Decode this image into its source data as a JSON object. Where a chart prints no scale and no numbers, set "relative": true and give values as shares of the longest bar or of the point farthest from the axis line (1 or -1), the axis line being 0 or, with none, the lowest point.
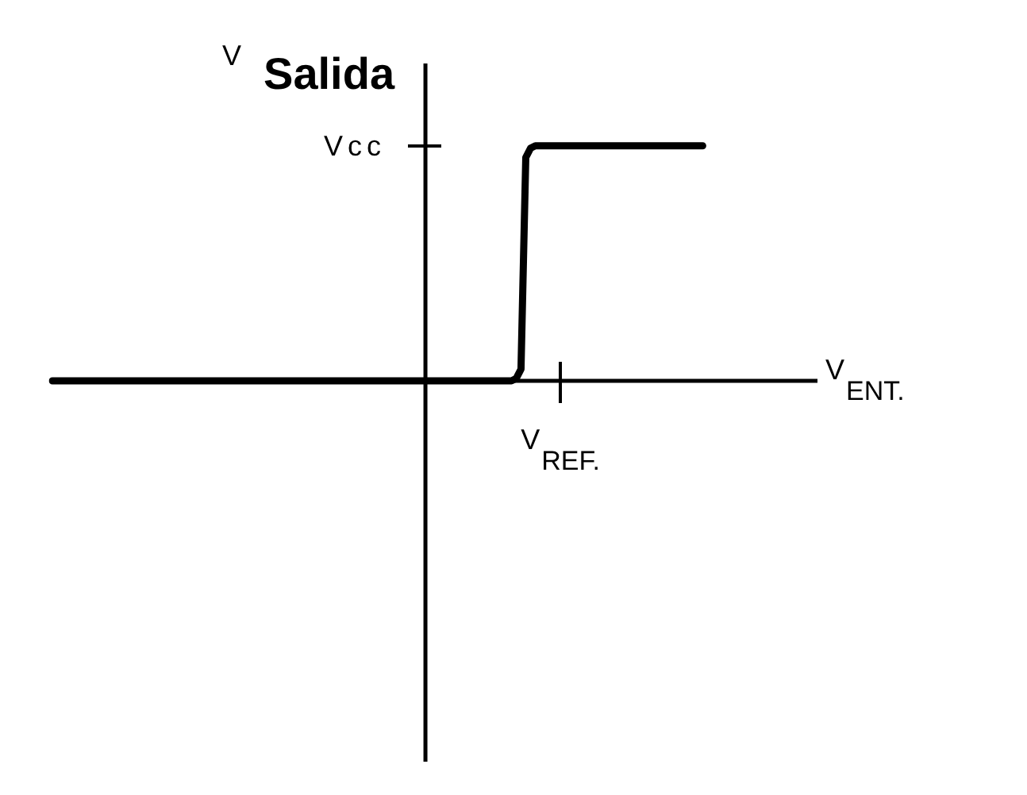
{
  "chart_data": {
    "type": "line",
    "relative": true,
    "xlabel": "V$_{ENT.}$",
    "ylabel": "V$_{Salida}$",
    "categories": [
      null,
      null,
      null,
      null,
      null,
      null,
      null,
      null,
      null,
      null,
      null,
      null,
      null,
      null,
      null,
      null,
      null,
      null,
      null,
      null,
      null,
      null,
      null,
      null,
      null,
      null,
      null,
      null,
      null,
      null,
      null,
      null,
      null,
      null,
      null,
      null,
      null,
      null,
      null,
      null,
      null,
      null,
      null,
      null,
      null,
      null,
      null,
      null,
      null,
      null,
      null,
      null,
      null,
      null,
      null,
      null,
      null,
      null,
      null,
      null,
      null,
      null,
      null,
      null,
      null,
      null,
      null,
      null,
      null,
      null,
      null,
      null,
      null,
      null,
      null,
      null,
      null,
      null,
      null,
      null,
      null,
      null,
      null,
      null,
      null,
      null,
      null,
      null,
      null,
      null,
      null,
      null,
      null,
      null,
      null,
      null,
      null,
      null,
      null,
      null,
      null,
      null,
      null,
      null,
      null,
      null,
      null,
      null,
      null,
      null,
      null,
      null,
      null,
      null,
      null,
      null,
      null,
      null,
      null,
      null,
      null,
      null,
      null,
      null,
      null,
      null,
      null,
      null,
      null,
      null,
      null,
      null,
      null,
      null,
      null,
      null,
      null,
      null,
      null,
      null,
      null,
      null,
      null,
      null,
      null,
      null,
      null,
      null,
      null,
      null,
      null,
      null,
      null,
      null,
      null,
      null,
      null,
      null,
      null,
      null,
      null
    ],
    "values": [
      0,
      0,
      0,
      0,
      0,
      0,
      0,
      0,
      0,
      0,
      0,
      0,
      0,
      0,
      0,
      0,
      0,
      0,
      0,
      0,
      0,
      0,
      0,
      0,
      0,
      0,
      0,
      0,
      0,
      0,
      0,
      0,
      0,
      0,
      0,
      0,
      0,
      0,
      0,
      0,
      0,
      0,
      0,
      0,
      0,
      0,
      0,
      0,
      0,
      0,
      0,
      0,
      0,
      0,
      0,
      0,
      0,
      0,
      0,
      0,
      0,
      0,
      0,
      0,
      0,
      0,
      0,
      0,
      0,
      0,
      0,
      0,
      0,
      0,
      0,
      0,
      0,
      0,
      0,
      0,
      0,
      0,
      0,
      0,
      0,
      0,
      0,
      0,
      0,
      0,
      0,
      0,
      0,
      0,
      0,
      0,
      0,
      0.01,
      0.05,
      0.95,
      0.99,
      1,
      1,
      1,
      1,
      1,
      1,
      1,
      1,
      1,
      1,
      1,
      1,
      1,
      1,
      1,
      1,
      1,
      1,
      1,
      1,
      1,
      1,
      1,
      1,
      1,
      1,
      1,
      1,
      1,
      1,
      1,
      1,
      1,
      1,
      1,
      1,
      null,
      null,
      null,
      null,
      null,
      null,
      null,
      null,
      null,
      null,
      null,
      null,
      null,
      null,
      null,
      null,
      null,
      null,
      null,
      null,
      null,
      null,
      null,
      null
    ],
    "color": "#000000",
    "annotations": [
      "Vcc",
      "V$_{REF.}$"
    ],
    "marker": "none",
    "line_style": "solid"
  }
}
